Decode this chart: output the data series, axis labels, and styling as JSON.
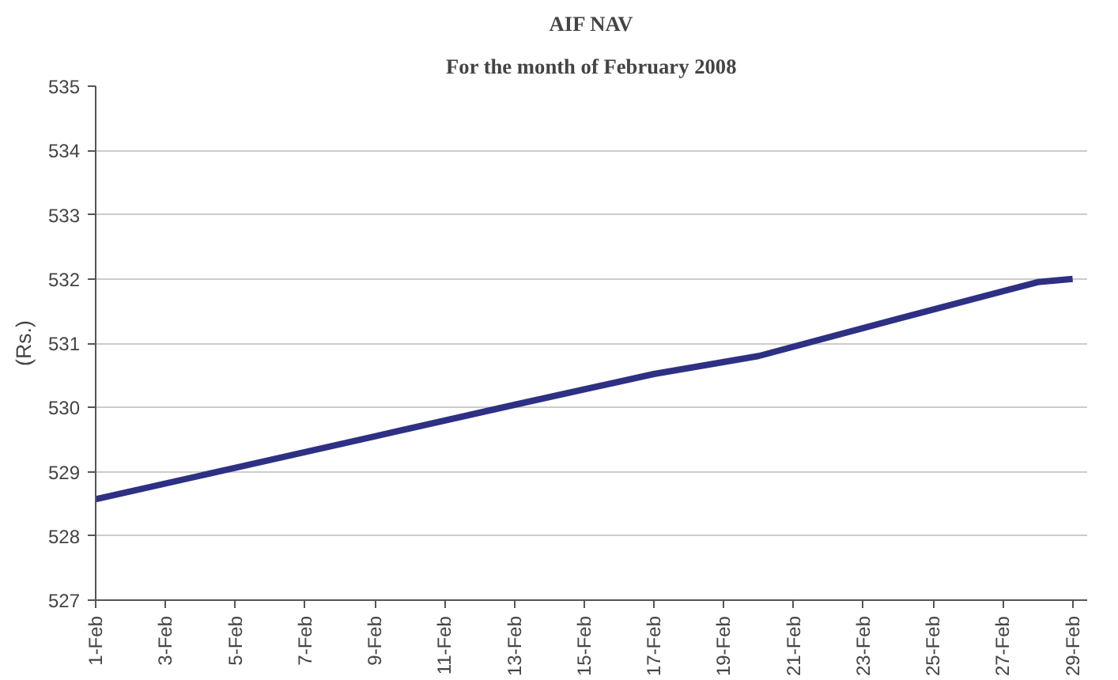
{
  "chart_data": {
    "type": "line",
    "title": "AIF NAV",
    "subtitle": "For the month of February 2008",
    "ylabel": "(Rs.)",
    "x": [
      "2008-02-01",
      "2008-02-05",
      "2008-02-09",
      "2008-02-13",
      "2008-02-17",
      "2008-02-20",
      "2008-02-24",
      "2008-02-28",
      "2008-02-29"
    ],
    "series": [
      {
        "color": "#2e3084",
        "values": [
          528.57,
          529.06,
          529.55,
          530.04,
          530.52,
          530.8,
          531.38,
          531.95,
          532.0
        ]
      }
    ],
    "xlim": [
      "2008-02-01",
      "2008-02-29T10:00"
    ],
    "xticks": [
      {
        "value": "2008-02-01",
        "label": "1-Feb"
      },
      {
        "value": "2008-02-03",
        "label": "3-Feb"
      },
      {
        "value": "2008-02-05",
        "label": "5-Feb"
      },
      {
        "value": "2008-02-07",
        "label": "7-Feb"
      },
      {
        "value": "2008-02-09",
        "label": "9-Feb"
      },
      {
        "value": "2008-02-11",
        "label": "11-Feb"
      },
      {
        "value": "2008-02-13",
        "label": "13-Feb"
      },
      {
        "value": "2008-02-15",
        "label": "15-Feb"
      },
      {
        "value": "2008-02-17",
        "label": "17-Feb"
      },
      {
        "value": "2008-02-19",
        "label": "19-Feb"
      },
      {
        "value": "2008-02-21",
        "label": "21-Feb"
      },
      {
        "value": "2008-02-23",
        "label": "23-Feb"
      },
      {
        "value": "2008-02-25",
        "label": "25-Feb"
      },
      {
        "value": "2008-02-27",
        "label": "27-Feb"
      },
      {
        "value": "2008-02-29",
        "label": "29-Feb"
      }
    ],
    "ylim": [
      527,
      535
    ],
    "yticks": [
      527,
      528,
      529,
      530,
      531,
      532,
      533,
      534,
      535
    ],
    "grid": "y",
    "line_style": "solid",
    "marker": "none"
  }
}
